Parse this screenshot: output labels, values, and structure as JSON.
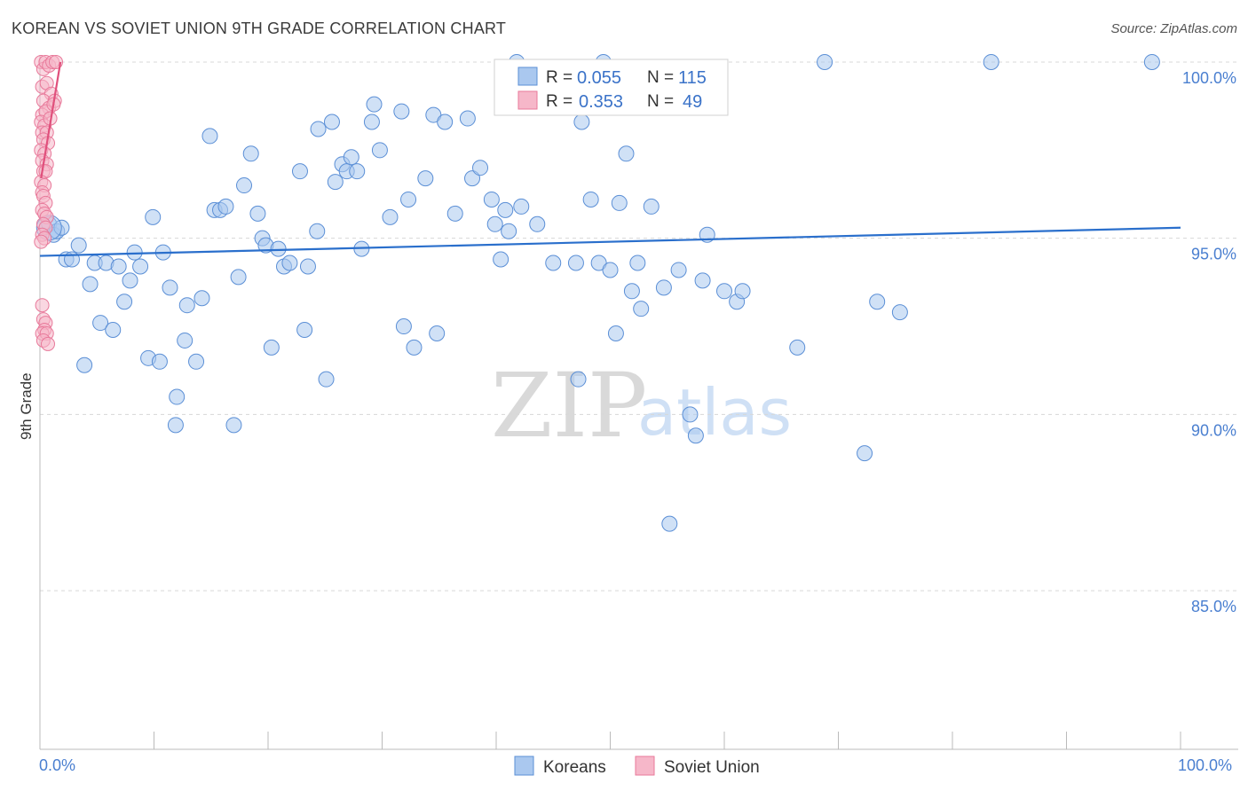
{
  "title": "KOREAN VS SOVIET UNION 9TH GRADE CORRELATION CHART",
  "source": "Source: ZipAtlas.com",
  "watermark": {
    "zip": "ZIP",
    "atlas": "atlas"
  },
  "colors": {
    "korean_fill": "#aac8ef",
    "korean_stroke": "#5b8fd6",
    "korean_line": "#2a6fcc",
    "soviet_fill": "#f6b7c9",
    "soviet_stroke": "#e8799a",
    "soviet_line": "#e0507c",
    "axis_label": "#4a7fd0",
    "grid": "#d8d8d8"
  },
  "legend": {
    "rows": [
      {
        "r_label": "R =",
        "r_value": "0.055",
        "n_label": "N =",
        "n_value": "115"
      },
      {
        "r_label": "R =",
        "r_value": "0.353",
        "n_label": "N =",
        "n_value": "49"
      }
    ]
  },
  "bottom_legend": [
    "Koreans",
    "Soviet Union"
  ],
  "chart_data": {
    "type": "scatter",
    "title": "KOREAN VS SOVIET UNION 9TH GRADE CORRELATION CHART",
    "xlabel": "",
    "ylabel": "9th Grade",
    "xlim": [
      0,
      100
    ],
    "ylim": [
      80.5,
      100.2
    ],
    "x_tick_labels": [
      "0.0%",
      "100.0%"
    ],
    "y_ticks": [
      85.0,
      90.0,
      95.0,
      100.0
    ],
    "y_tick_labels": [
      "85.0%",
      "90.0%",
      "95.0%",
      "100.0%"
    ],
    "grid": true,
    "legend_position": "top-center",
    "series": [
      {
        "name": "Koreans",
        "R": 0.055,
        "N": 115,
        "trend": {
          "x": [
            0,
            100
          ],
          "y": [
            94.5,
            95.3
          ]
        },
        "points": [
          [
            0.8,
            95.4
          ],
          [
            1.2,
            95.1
          ],
          [
            1.5,
            95.2
          ],
          [
            1.9,
            95.3
          ],
          [
            2.3,
            94.4
          ],
          [
            2.8,
            94.4
          ],
          [
            3.4,
            94.8
          ],
          [
            3.9,
            91.4
          ],
          [
            4.4,
            93.7
          ],
          [
            4.8,
            94.3
          ],
          [
            5.3,
            92.6
          ],
          [
            5.8,
            94.3
          ],
          [
            6.4,
            92.4
          ],
          [
            6.9,
            94.2
          ],
          [
            7.4,
            93.2
          ],
          [
            7.9,
            93.8
          ],
          [
            8.3,
            94.6
          ],
          [
            8.8,
            94.2
          ],
          [
            9.5,
            91.6
          ],
          [
            9.9,
            95.6
          ],
          [
            10.5,
            91.5
          ],
          [
            10.8,
            94.6
          ],
          [
            11.4,
            93.6
          ],
          [
            11.9,
            89.7
          ],
          [
            12.0,
            90.5
          ],
          [
            12.7,
            92.1
          ],
          [
            12.9,
            93.1
          ],
          [
            13.7,
            91.5
          ],
          [
            14.2,
            93.3
          ],
          [
            14.9,
            97.9
          ],
          [
            15.3,
            95.8
          ],
          [
            15.8,
            95.8
          ],
          [
            16.3,
            95.9
          ],
          [
            17.0,
            89.7
          ],
          [
            17.4,
            93.9
          ],
          [
            17.9,
            96.5
          ],
          [
            18.5,
            97.4
          ],
          [
            19.1,
            95.7
          ],
          [
            19.5,
            95.0
          ],
          [
            19.8,
            94.8
          ],
          [
            20.3,
            91.9
          ],
          [
            20.9,
            94.7
          ],
          [
            21.4,
            94.2
          ],
          [
            21.9,
            94.3
          ],
          [
            22.8,
            96.9
          ],
          [
            23.2,
            92.4
          ],
          [
            23.5,
            94.2
          ],
          [
            24.3,
            95.2
          ],
          [
            24.4,
            98.1
          ],
          [
            25.1,
            91.0
          ],
          [
            25.6,
            98.3
          ],
          [
            25.9,
            96.6
          ],
          [
            26.5,
            97.1
          ],
          [
            26.9,
            96.9
          ],
          [
            27.3,
            97.3
          ],
          [
            27.8,
            96.9
          ],
          [
            28.2,
            94.7
          ],
          [
            29.1,
            98.3
          ],
          [
            29.3,
            98.8
          ],
          [
            29.8,
            97.5
          ],
          [
            30.7,
            95.6
          ],
          [
            31.7,
            98.6
          ],
          [
            31.9,
            92.5
          ],
          [
            32.3,
            96.1
          ],
          [
            32.8,
            91.9
          ],
          [
            33.8,
            96.7
          ],
          [
            34.5,
            98.5
          ],
          [
            34.8,
            92.3
          ],
          [
            35.5,
            98.3
          ],
          [
            36.4,
            95.7
          ],
          [
            37.5,
            98.4
          ],
          [
            37.9,
            96.7
          ],
          [
            38.6,
            97.0
          ],
          [
            39.6,
            96.1
          ],
          [
            39.9,
            95.4
          ],
          [
            40.4,
            94.4
          ],
          [
            40.8,
            95.8
          ],
          [
            41.1,
            95.2
          ],
          [
            41.8,
            100.0
          ],
          [
            42.2,
            95.9
          ],
          [
            42.8,
            98.8
          ],
          [
            43.6,
            95.4
          ],
          [
            45.0,
            94.3
          ],
          [
            47.0,
            94.3
          ],
          [
            47.2,
            91.0
          ],
          [
            47.5,
            98.3
          ],
          [
            48.3,
            96.1
          ],
          [
            49.0,
            94.3
          ],
          [
            49.4,
            100.0
          ],
          [
            50.0,
            94.1
          ],
          [
            50.5,
            92.3
          ],
          [
            50.8,
            96.0
          ],
          [
            51.4,
            97.4
          ],
          [
            51.9,
            93.5
          ],
          [
            52.4,
            94.3
          ],
          [
            52.7,
            93.0
          ],
          [
            53.6,
            95.9
          ],
          [
            54.7,
            93.6
          ],
          [
            55.2,
            86.9
          ],
          [
            56.0,
            94.1
          ],
          [
            57.0,
            90.0
          ],
          [
            57.5,
            89.4
          ],
          [
            58.1,
            93.8
          ],
          [
            58.5,
            95.1
          ],
          [
            60.0,
            93.5
          ],
          [
            61.1,
            93.2
          ],
          [
            61.6,
            93.5
          ],
          [
            66.4,
            91.9
          ],
          [
            68.8,
            100.0
          ],
          [
            72.3,
            88.9
          ],
          [
            73.4,
            93.2
          ],
          [
            75.4,
            92.9
          ],
          [
            83.4,
            100.0
          ],
          [
            97.5,
            100.0
          ]
        ]
      },
      {
        "name": "Soviet Union",
        "R": 0.353,
        "N": 49,
        "trend": {
          "x": [
            0.1,
            1.8
          ],
          "y": [
            96.7,
            100.0
          ]
        },
        "points": [
          [
            0.1,
            100.0
          ],
          [
            0.3,
            99.8
          ],
          [
            0.5,
            100.0
          ],
          [
            0.8,
            99.9
          ],
          [
            1.1,
            100.0
          ],
          [
            1.4,
            100.0
          ],
          [
            0.2,
            99.3
          ],
          [
            0.6,
            99.4
          ],
          [
            1.0,
            99.1
          ],
          [
            0.3,
            98.9
          ],
          [
            0.8,
            98.7
          ],
          [
            1.3,
            98.9
          ],
          [
            0.2,
            98.5
          ],
          [
            0.5,
            98.6
          ],
          [
            1.2,
            98.8
          ],
          [
            0.1,
            98.3
          ],
          [
            0.4,
            98.2
          ],
          [
            0.9,
            98.4
          ],
          [
            0.2,
            98.0
          ],
          [
            0.6,
            98.0
          ],
          [
            0.3,
            97.8
          ],
          [
            0.7,
            97.7
          ],
          [
            0.1,
            97.5
          ],
          [
            0.4,
            97.4
          ],
          [
            0.2,
            97.2
          ],
          [
            0.6,
            97.1
          ],
          [
            0.3,
            96.9
          ],
          [
            0.5,
            96.9
          ],
          [
            0.1,
            96.6
          ],
          [
            0.4,
            96.5
          ],
          [
            0.2,
            96.3
          ],
          [
            0.3,
            96.2
          ],
          [
            0.5,
            96.0
          ],
          [
            0.2,
            95.8
          ],
          [
            0.4,
            95.7
          ],
          [
            0.6,
            95.6
          ],
          [
            0.3,
            95.4
          ],
          [
            0.5,
            95.3
          ],
          [
            0.2,
            95.1
          ],
          [
            0.4,
            95.0
          ],
          [
            0.1,
            94.9
          ],
          [
            0.2,
            93.1
          ],
          [
            0.3,
            92.7
          ],
          [
            0.5,
            92.6
          ],
          [
            0.4,
            92.4
          ],
          [
            0.2,
            92.3
          ],
          [
            0.6,
            92.3
          ],
          [
            0.3,
            92.1
          ],
          [
            0.7,
            92.0
          ]
        ]
      }
    ]
  }
}
